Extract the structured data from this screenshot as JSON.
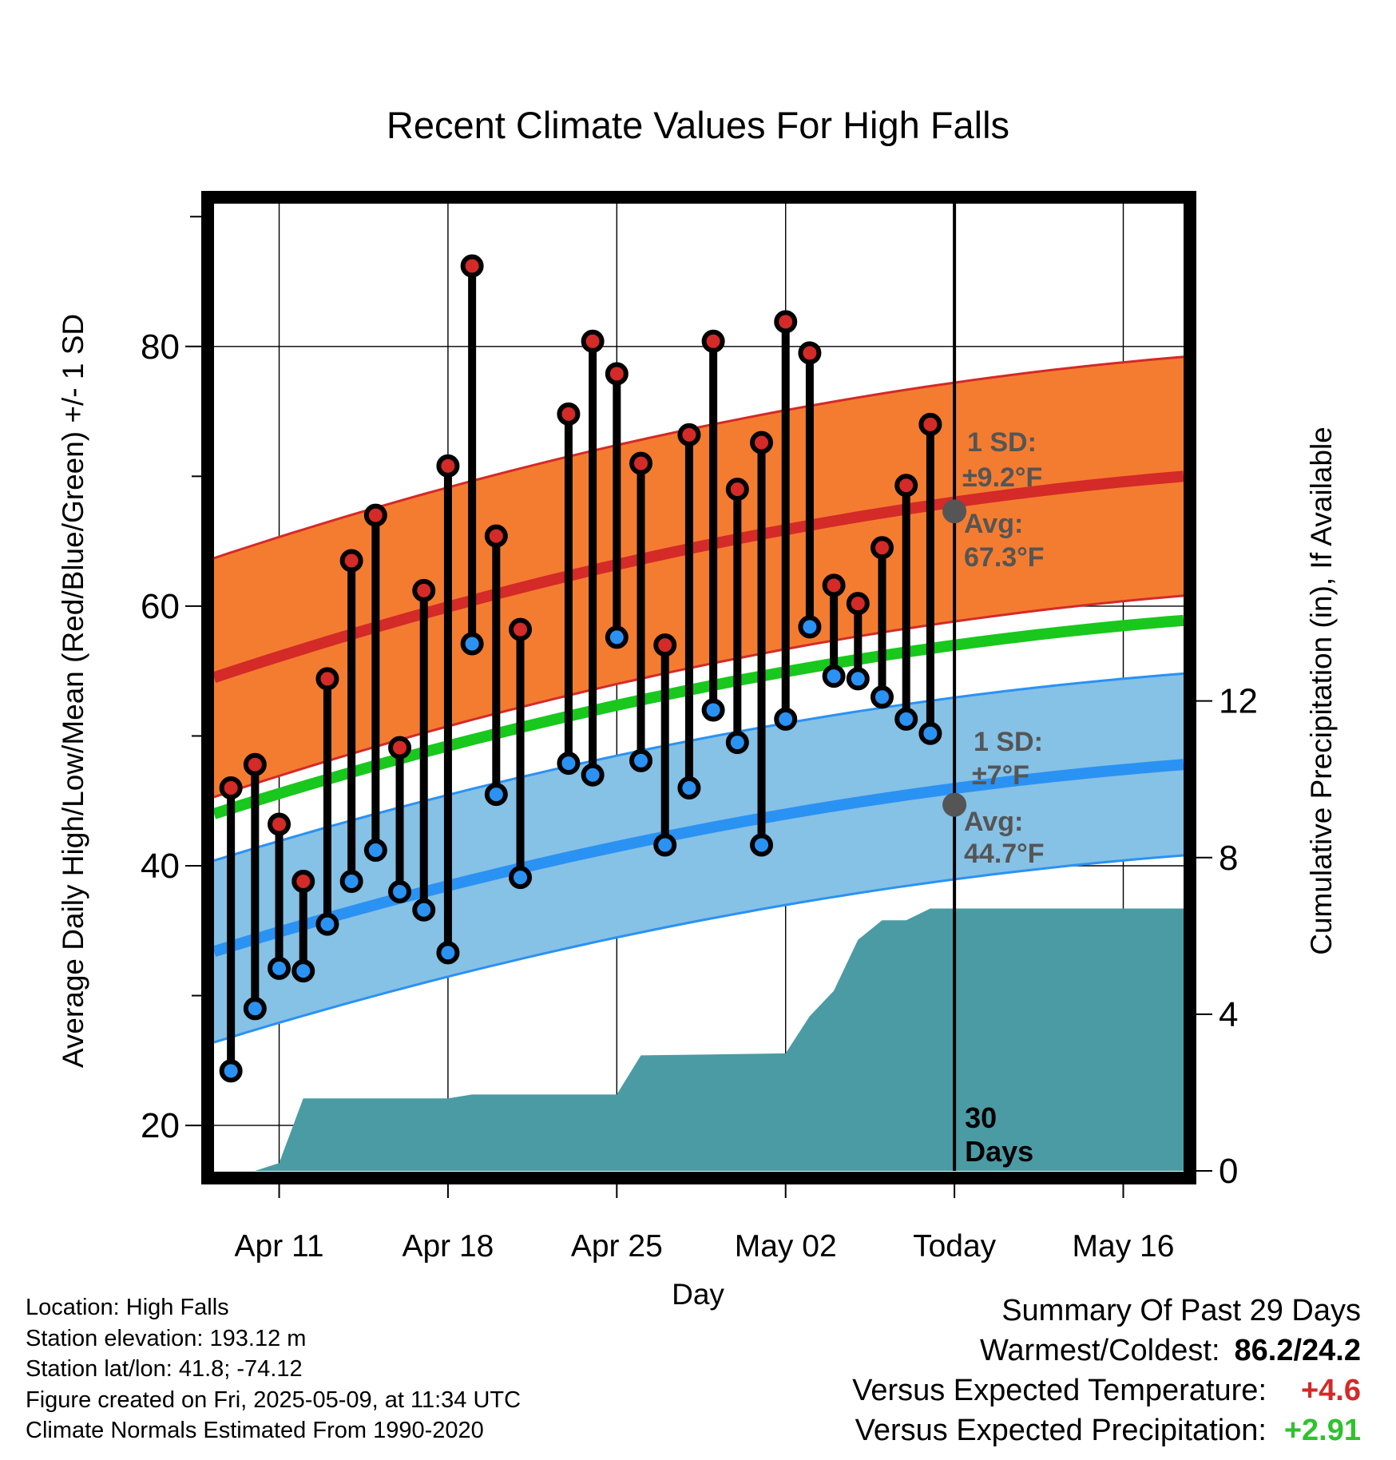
{
  "chart_data": {
    "type": "line",
    "title": "Recent Climate Values For High Falls",
    "xlabel": "Day",
    "ylabel": "Average Daily High/Low/Mean (Red/Blue/Green) +/- 1 SD",
    "y2label": "Cumulative Precipitation (in), If Available",
    "ylim": [
      16.5,
      91
    ],
    "y2lim": [
      0,
      24.7
    ],
    "y_ticks": [
      20,
      40,
      60,
      80
    ],
    "y2_ticks": [
      0,
      4,
      8,
      12
    ],
    "x_tick_labels": [
      "Apr 11",
      "Apr 18",
      "Apr 25",
      "May 02",
      "Today",
      "May 16"
    ],
    "x_tick_days": [
      3,
      10,
      17,
      24,
      31,
      38
    ],
    "xlim": [
      0.3,
      40.5
    ],
    "today_day": 31,
    "days_label": "30\nDays",
    "daily_highs": [
      46.0,
      47.8,
      43.2,
      38.8,
      54.4,
      63.5,
      67.0,
      49.1,
      61.2,
      70.8,
      86.2,
      65.4,
      58.2,
      null,
      74.8,
      80.4,
      77.9,
      71.0,
      57.0,
      73.2,
      80.4,
      69.0,
      72.6,
      81.9,
      79.5,
      61.6,
      60.2,
      64.5,
      69.3,
      74.0
    ],
    "daily_lows": [
      24.2,
      29.0,
      32.1,
      31.9,
      35.5,
      38.8,
      41.2,
      38.0,
      36.6,
      33.3,
      57.1,
      45.5,
      39.1,
      null,
      47.9,
      47.0,
      57.6,
      48.1,
      41.6,
      46.0,
      52.0,
      49.5,
      41.6,
      51.3,
      58.4,
      54.6,
      54.4,
      53.0,
      51.3,
      50.2
    ],
    "normal_high": {
      "start": 54.5,
      "end": 70.0,
      "today": 67.3,
      "sd": 9.2
    },
    "normal_low": {
      "start": 33.4,
      "end": 47.8,
      "today": 44.7,
      "sd": 7
    },
    "normal_mean": {
      "start": 44.0,
      "end": 58.9
    },
    "precip_cumulative": [
      {
        "day": 2,
        "value": 0
      },
      {
        "day": 3,
        "value": 0.2
      },
      {
        "day": 4,
        "value": 1.85
      },
      {
        "day": 10,
        "value": 1.85
      },
      {
        "day": 11,
        "value": 1.95
      },
      {
        "day": 17,
        "value": 1.95
      },
      {
        "day": 18,
        "value": 2.95
      },
      {
        "day": 24,
        "value": 3.0
      },
      {
        "day": 25,
        "value": 3.95
      },
      {
        "day": 26,
        "value": 4.6
      },
      {
        "day": 27,
        "value": 5.9
      },
      {
        "day": 28,
        "value": 6.4
      },
      {
        "day": 29,
        "value": 6.4
      },
      {
        "day": 30,
        "value": 6.7
      },
      {
        "day": 40.5,
        "value": 6.7
      }
    ],
    "annotations": {
      "high_sd_label": "1 SD:",
      "high_sd_value": "±9.2°F",
      "high_avg_label": "Avg:",
      "high_avg_value": "67.3°F",
      "low_sd_label": "1 SD:",
      "low_sd_value": "±7°F",
      "low_avg_label": "Avg:",
      "low_avg_value": "44.7°F"
    },
    "colors": {
      "high_band": "#f47c30",
      "high_line": "#d42a28",
      "low_band": "#86c1e6",
      "low_line": "#2a92f2",
      "mean_line": "#18c81c",
      "precip_fill": "#4a9ba4",
      "high_dot": "#d42a28",
      "low_dot": "#2a92f2",
      "today_marker": "#555555"
    }
  },
  "info": {
    "location": "Location: High Falls",
    "elevation": "Station elevation: 193.12 m",
    "latlon": "Station lat/lon: 41.8; -74.12",
    "created": "Figure created on Fri, 2025-05-09, at 11:34 UTC",
    "normals": "Climate Normals Estimated From 1990-2020"
  },
  "summary": {
    "title": "Summary Of Past 29 Days",
    "warm_cold_label": "Warmest/Coldest:",
    "warm_cold_value": "86.2/24.2",
    "temp_label": "Versus Expected Temperature:",
    "temp_value": "+4.6",
    "temp_color": "#d42a28",
    "precip_label": "Versus Expected Precipitation:",
    "precip_value": "+2.91",
    "precip_color": "#2ec22e"
  }
}
